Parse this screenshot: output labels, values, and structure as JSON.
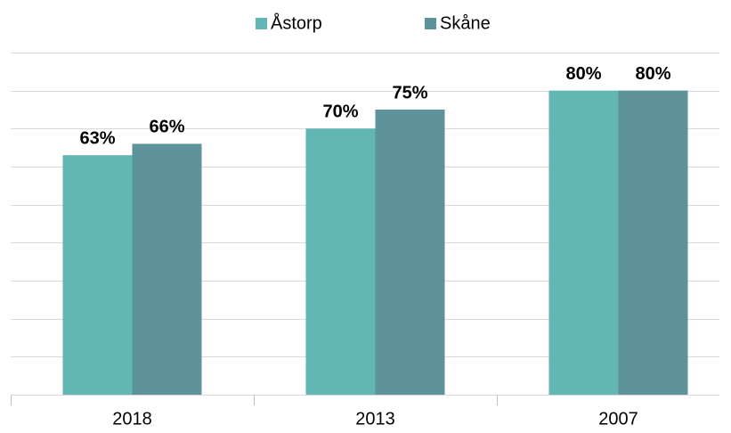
{
  "chart_data": {
    "type": "bar",
    "categories": [
      "2018",
      "2013",
      "2007"
    ],
    "series": [
      {
        "name": "Åstorp",
        "color": "#62b6b4",
        "values": [
          63,
          70,
          80
        ],
        "value_labels": [
          "63%",
          "70%",
          "80%"
        ]
      },
      {
        "name": "Skåne",
        "color": "#5f939c",
        "values": [
          66,
          75,
          80
        ],
        "value_labels": [
          "66%",
          "75%",
          "80%"
        ]
      }
    ],
    "ylim": [
      0,
      90
    ],
    "yticks": [
      0,
      10,
      20,
      30,
      40,
      50,
      60,
      70,
      80,
      90
    ],
    "grid": true,
    "legend": "top"
  }
}
